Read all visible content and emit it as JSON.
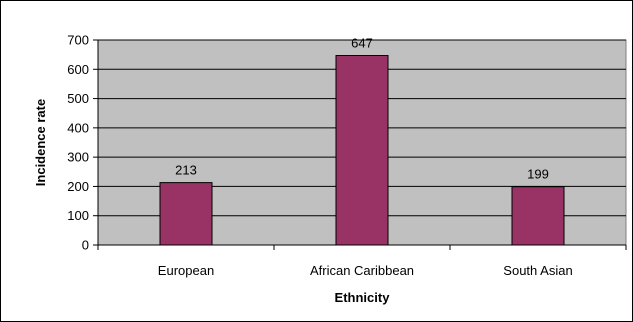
{
  "chart_data": {
    "type": "bar",
    "title": "",
    "xlabel": "Ethnicity",
    "ylabel": "Incidence rate",
    "categories": [
      "European",
      "African Caribbean",
      "South Asian"
    ],
    "values": [
      213,
      647,
      199
    ],
    "data_labels": [
      "213",
      "647",
      "199"
    ],
    "ylim": [
      0,
      700
    ],
    "yticks": [
      0,
      100,
      200,
      300,
      400,
      500,
      600,
      700
    ],
    "ytick_labels": [
      "0",
      "100",
      "200",
      "300",
      "400",
      "500",
      "600",
      "700"
    ],
    "grid": true,
    "legend": "none",
    "colors": {
      "bar": "#993366",
      "plot_background": "#c0c0c0",
      "gridline": "#000000"
    }
  }
}
